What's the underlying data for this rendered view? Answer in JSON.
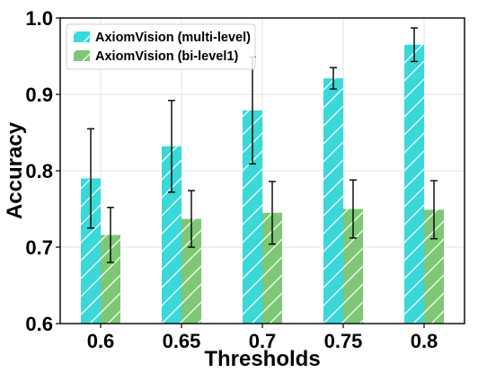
{
  "chart_data": {
    "type": "bar",
    "title": "",
    "xlabel": "Thresholds",
    "ylabel": "Accuracy",
    "categories": [
      "0.6",
      "0.65",
      "0.7",
      "0.75",
      "0.8"
    ],
    "ylim": [
      0.6,
      1.0
    ],
    "yticks": [
      "0.6",
      "0.7",
      "0.8",
      "0.9",
      "1.0"
    ],
    "grid": true,
    "legend_position": "top-left",
    "series": [
      {
        "name": "AxiomVision (multi-level)",
        "color": "#3ad8d8",
        "hatch": "diagonal",
        "values": [
          0.79,
          0.832,
          0.879,
          0.921,
          0.965
        ],
        "error": [
          0.065,
          0.06,
          0.07,
          0.014,
          0.022
        ]
      },
      {
        "name": "AxiomVision (bi-level1)",
        "color": "#7dc775",
        "hatch": "diagonal",
        "values": [
          0.716,
          0.737,
          0.745,
          0.75,
          0.749
        ],
        "error": [
          0.036,
          0.037,
          0.041,
          0.038,
          0.038
        ]
      }
    ]
  }
}
